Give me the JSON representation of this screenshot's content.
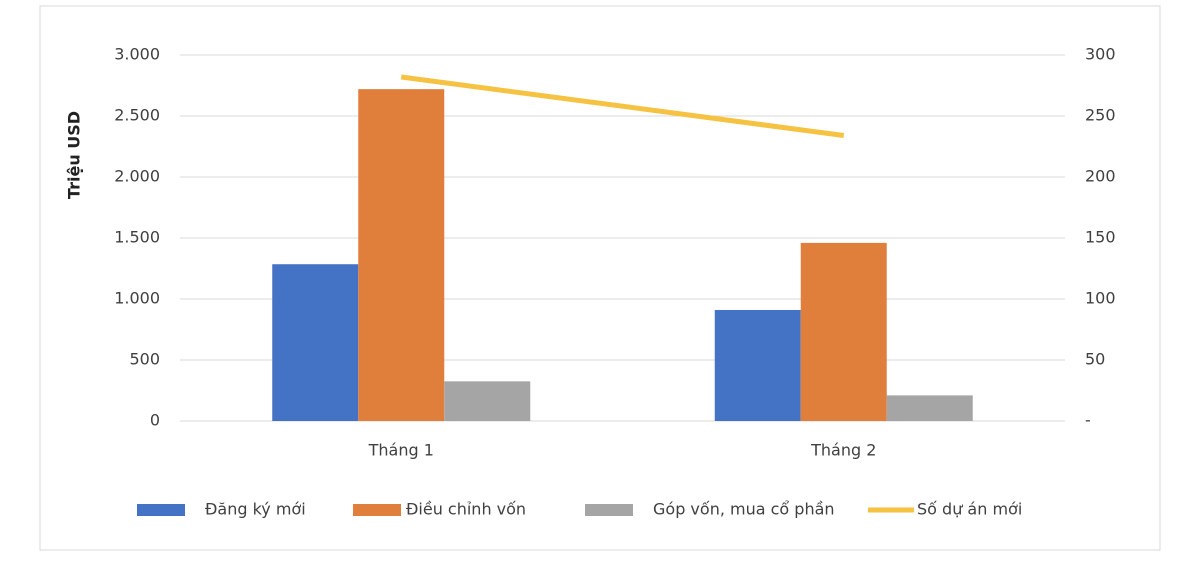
{
  "chart_data": {
    "type": "bar",
    "y_label": "Triệu USD",
    "categories": [
      "Tháng 1",
      "Tháng 2"
    ],
    "series": [
      {
        "name": "Đăng ký mới",
        "color": "#4472c4",
        "values": [
          1285,
          910
        ]
      },
      {
        "name": "Điều chỉnh vốn",
        "color": "#e07f3c",
        "values": [
          2720,
          1460
        ]
      },
      {
        "name": "Góp vốn, mua cổ phần",
        "color": "#a5a5a5",
        "values": [
          325,
          210
        ]
      },
      {
        "name": "Số dự án mới",
        "color": "#f5c242",
        "type": "line",
        "axis": "y2",
        "values": [
          282,
          234
        ]
      }
    ],
    "ylim": [
      0,
      3000
    ],
    "yticks": [
      0,
      {
        "value": 500,
        "label": "500"
      },
      {
        "value": 1000,
        "label": "1.000"
      },
      {
        "value": 1500,
        "label": "1.500"
      },
      {
        "value": 2000,
        "label": "2.000"
      },
      {
        "value": 2500,
        "label": "2.500"
      },
      {
        "value": 3000,
        "label": "3.000"
      }
    ],
    "y2lim": [
      0,
      300
    ],
    "y2ticks": [
      {
        "value": 0,
        "label": "-"
      },
      50,
      100,
      150,
      200,
      250,
      300
    ],
    "grid": true,
    "legend": "bottom"
  }
}
